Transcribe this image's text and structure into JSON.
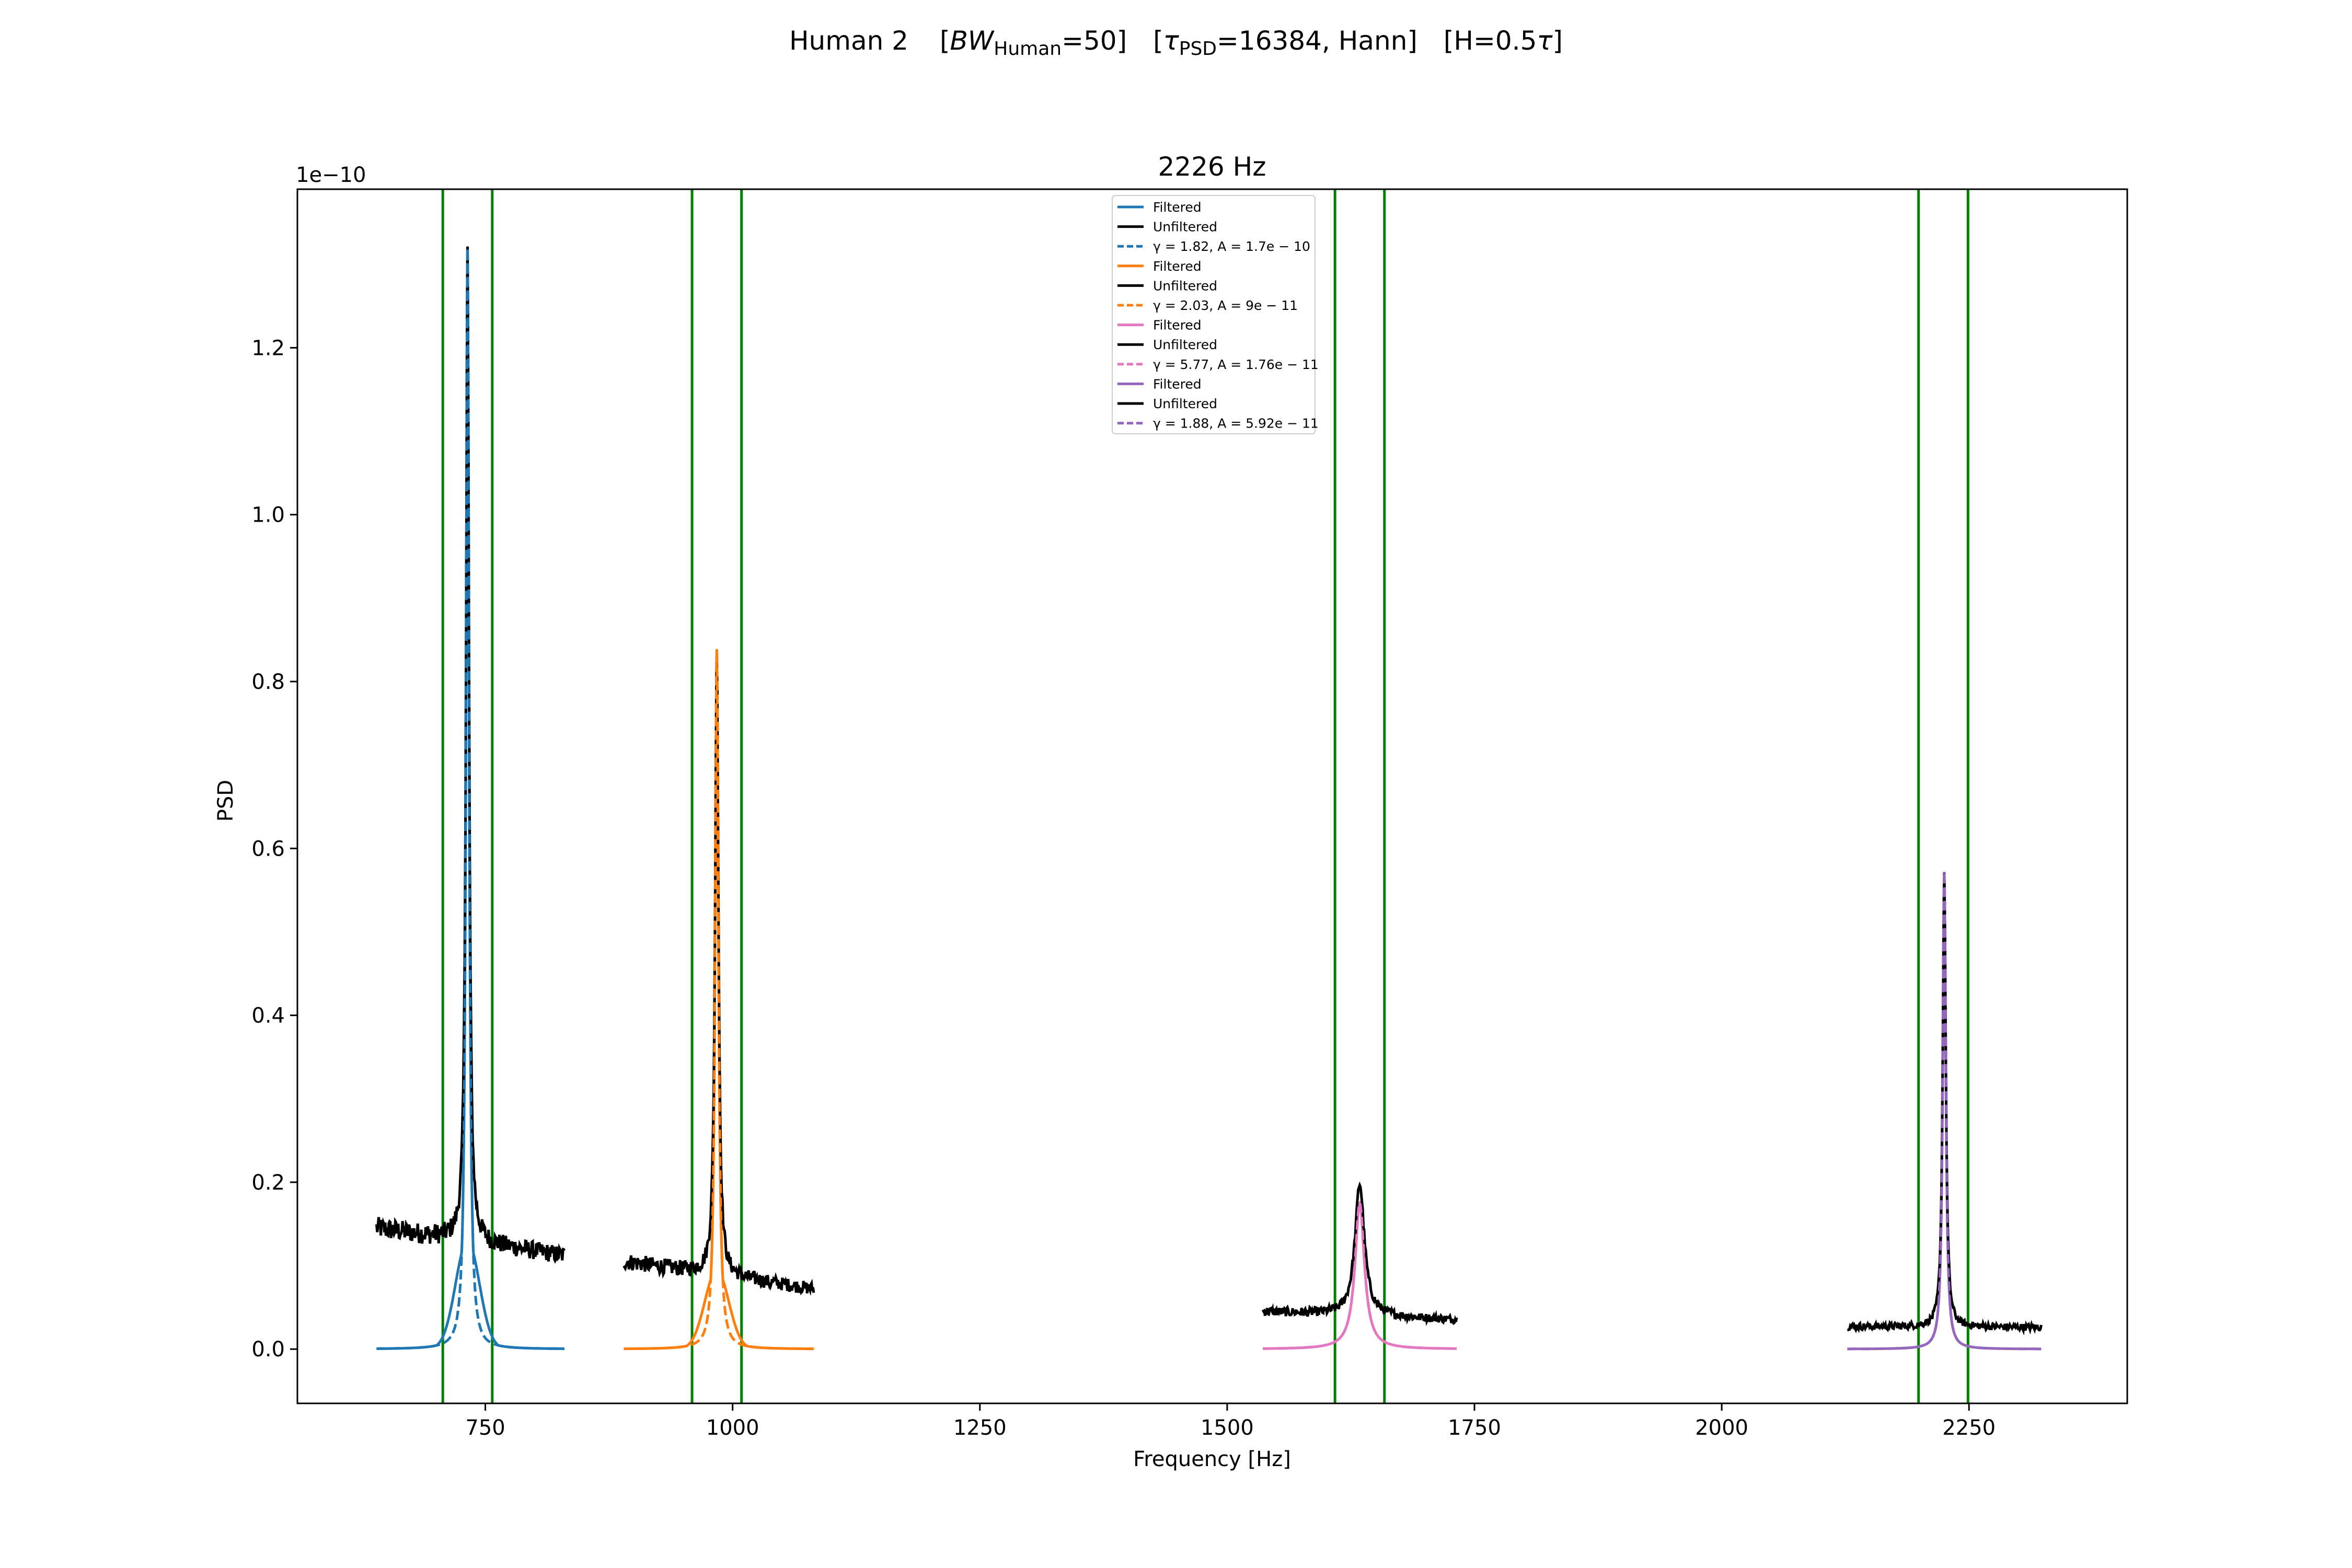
{
  "figure": {
    "suptitle": {
      "p1": "Human 2",
      "p2_open": "[",
      "p2_var": "BW",
      "p2_sub": "Human",
      "p2_rest": "=50]",
      "p3_open": "[",
      "p3_var": "τ",
      "p3_sub": "PSD",
      "p3_rest": "=16384, Hann]",
      "p4_open": "[H=0.5",
      "p4_var": "τ",
      "p4_rest": "]"
    }
  },
  "chart_data": {
    "type": "line",
    "title": "2226 Hz",
    "xlabel": "Frequency [Hz]",
    "ylabel": "PSD",
    "y_offset_label": "1e−10",
    "y_scale": 1e-10,
    "xlim": [
      560,
      2410
    ],
    "ylim": [
      -0.065,
      1.39
    ],
    "xticks": [
      750,
      1000,
      1250,
      1500,
      1750,
      2000,
      2250
    ],
    "xtick_labels": [
      "750",
      "1000",
      "1250",
      "1500",
      "1750",
      "2000",
      "2250"
    ],
    "yticks": [
      0.0,
      0.2,
      0.4,
      0.6,
      0.8,
      1.0,
      1.2
    ],
    "ytick_labels": [
      "0.0",
      "0.2",
      "0.4",
      "0.6",
      "0.8",
      "1.0",
      "1.2"
    ],
    "grid": false,
    "legend_position": "top-center",
    "vertical_lines": {
      "color": "#008000",
      "x": [
        707,
        757,
        959,
        1009,
        1609,
        1659,
        2199,
        2249
      ]
    },
    "groups": [
      {
        "color": "#1f77b4",
        "peak_freq": 732,
        "range": [
          640,
          830
        ],
        "filtered": {
          "label": "Filtered",
          "peak": 1.32,
          "filter_amp": 0.13,
          "filter_width": 12
        },
        "unfiltered": {
          "label": "Unfiltered",
          "color": "#000000",
          "baseline_start": 0.145,
          "baseline_end": 0.112,
          "peak": 1.32
        },
        "fit": {
          "label": "γ = 1.82, A = 1.7e − 10",
          "gamma": 1.82,
          "A": 1.7e-10
        }
      },
      {
        "color": "#ff7f0e",
        "peak_freq": 984,
        "range": [
          890,
          1082
        ],
        "filtered": {
          "label": "Filtered",
          "peak": 0.84,
          "filter_amp": 0.095,
          "filter_width": 12
        },
        "unfiltered": {
          "label": "Unfiltered",
          "color": "#000000",
          "baseline_start": 0.105,
          "baseline_end": 0.072,
          "peak": 0.84
        },
        "fit": {
          "label": "γ = 2.03, A = 9e − 11",
          "gamma": 2.03,
          "A": 9e-11
        }
      },
      {
        "color": "#e377c2",
        "peak_freq": 1634,
        "range": [
          1536,
          1732
        ],
        "filtered": {
          "label": "Filtered",
          "peak": 0.175,
          "filter_amp": 0.02,
          "filter_width": 10
        },
        "unfiltered": {
          "label": "Unfiltered",
          "color": "#000000",
          "baseline_start": 0.045,
          "baseline_end": 0.035,
          "peak": 0.198
        },
        "fit": {
          "label": "γ = 5.77, A = 1.76e − 11",
          "gamma": 5.77,
          "A": 1.76e-11
        }
      },
      {
        "color": "#9467bd",
        "peak_freq": 2225,
        "range": [
          2127,
          2323
        ],
        "filtered": {
          "label": "Filtered",
          "peak": 0.572,
          "filter_amp": 0.02,
          "filter_width": 8
        },
        "unfiltered": {
          "label": "Unfiltered",
          "color": "#000000",
          "baseline_start": 0.027,
          "baseline_end": 0.026,
          "peak": 0.572
        },
        "fit": {
          "label": "γ = 1.88, A = 5.92e − 11",
          "gamma": 1.88,
          "A": 5.92e-11
        }
      }
    ]
  }
}
